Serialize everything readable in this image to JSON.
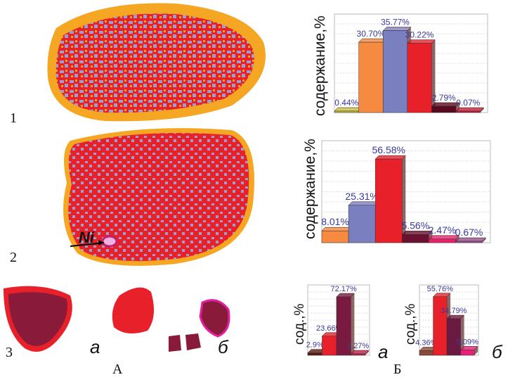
{
  "panel_labels": {
    "row1": "1",
    "row2": "2",
    "row3": "3",
    "left": "А",
    "right": "Б",
    "sub_a": "а",
    "sub_b": "б",
    "sub_a_chart": "а",
    "sub_b_chart": "б"
  },
  "annotation": {
    "ni": "Ni"
  },
  "colors": {
    "orange": "#f5a623",
    "lavender": "#9b9fd0",
    "red": "#e8202a",
    "maroon": "#8a1a3a",
    "pink": "#e0208a"
  },
  "chart_data": [
    {
      "type": "bar",
      "ylabel": "содержание,%",
      "ymax_tick": "0",
      "values": [
        0.44,
        30.7,
        35.77,
        30.22,
        2.79,
        0.07
      ],
      "labels": [
        "0.44%",
        "30.70%",
        "35.77%",
        "30.22%",
        "2.79%",
        "0.07%"
      ],
      "colors": [
        "#c8c040",
        "#f58a40",
        "#7a7fc0",
        "#e8202a",
        "#5a0a20",
        "#c0203a"
      ],
      "grid": true
    },
    {
      "type": "bar",
      "ylabel": "содержание,%",
      "ymax_tick": "0",
      "values": [
        8.01,
        25.31,
        56.58,
        5.56,
        2.47,
        0.67
      ],
      "labels": [
        "8.01%",
        "25.31%",
        "56.58%",
        "5.56%",
        "2.47%",
        "0.67%"
      ],
      "colors": [
        "#f58a40",
        "#7a7fc0",
        "#e8202a",
        "#6a1030",
        "#e8206a",
        "#9a5090"
      ],
      "grid": true
    },
    {
      "type": "bar",
      "ylabel": "сод.,%",
      "values": [
        2.9,
        23.66,
        72.17,
        1.27
      ],
      "labels": [
        "2.9%",
        "23.66%",
        "72.17%",
        "1.27%"
      ],
      "colors": [
        "#5a1a10",
        "#e8202a",
        "#7a1a40",
        "#c0204a"
      ],
      "grid": true
    },
    {
      "type": "bar",
      "ylabel": "сод.,%",
      "values": [
        4.36,
        55.76,
        34.79,
        5.09
      ],
      "labels": [
        "4.36%",
        "55.76%",
        "34.79%",
        "5.09%"
      ],
      "colors": [
        "#8a4a3a",
        "#e8202a",
        "#6a1a40",
        "#e8207a"
      ],
      "grid": true
    }
  ]
}
